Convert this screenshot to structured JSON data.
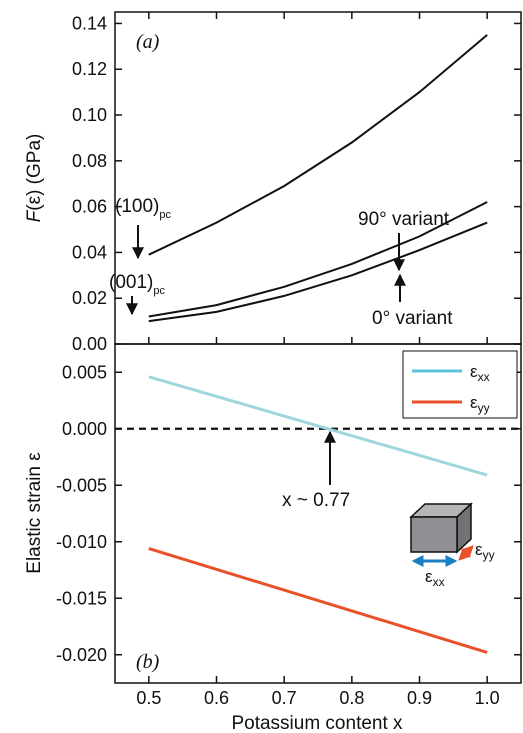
{
  "chart_data": [
    {
      "type": "line",
      "panel_label": "(a)",
      "ylabel_func": "F",
      "ylabel_arg": "(ε) (GPa)",
      "ylim": [
        0.0,
        0.145
      ],
      "yticks": [
        "0.00",
        "0.02",
        "0.04",
        "0.06",
        "0.08",
        "0.10",
        "0.12",
        "0.14"
      ],
      "series": [
        {
          "x": [
            0.5,
            0.6,
            0.7,
            0.8,
            0.9,
            1.0
          ],
          "values": [
            0.039,
            0.053,
            0.069,
            0.088,
            0.11,
            0.135
          ]
        },
        {
          "x": [
            0.5,
            0.6,
            0.7,
            0.8,
            0.9,
            1.0
          ],
          "values": [
            0.012,
            0.017,
            0.025,
            0.035,
            0.047,
            0.062
          ]
        },
        {
          "x": [
            0.5,
            0.6,
            0.7,
            0.8,
            0.9,
            1.0
          ],
          "values": [
            0.01,
            0.014,
            0.021,
            0.03,
            0.041,
            0.053
          ]
        }
      ],
      "annotations": {
        "plane_100": "(100)",
        "plane_001": "(001)",
        "pc": "pc",
        "variant_90": "90° variant",
        "variant_0": "0° variant"
      }
    },
    {
      "type": "line",
      "panel_label": "(b)",
      "ylabel": "Elastic strain ε",
      "xlabel": "Potassium content x",
      "ylim": [
        -0.0225,
        0.0075
      ],
      "xlim": [
        0.45,
        1.05
      ],
      "yticks": [
        "0.005",
        "0.000",
        "-0.005",
        "-0.010",
        "-0.015",
        "-0.020"
      ],
      "xticks": [
        "0.5",
        "0.6",
        "0.7",
        "0.8",
        "0.9",
        "1.0"
      ],
      "series": [
        {
          "name": "ε",
          "sub": "xx",
          "color": "#9ed6dc",
          "x": [
            0.5,
            1.0
          ],
          "values": [
            0.0046,
            -0.0041
          ]
        },
        {
          "name": "ε",
          "sub": "yy",
          "color": "#e8512a",
          "x": [
            0.5,
            1.0
          ],
          "values": [
            -0.0106,
            -0.0198
          ]
        }
      ],
      "legend_colors": {
        "xx": "#5bc4db",
        "yy": "#e8512a"
      },
      "zero_line": "dashed",
      "annotation": "x ~ 0.77",
      "inset": {
        "eps": "ε",
        "xx": "xx",
        "yy": "yy",
        "arrow_xx_color": "#1a7fc4",
        "arrow_yy_color": "#e8512a"
      }
    }
  ]
}
